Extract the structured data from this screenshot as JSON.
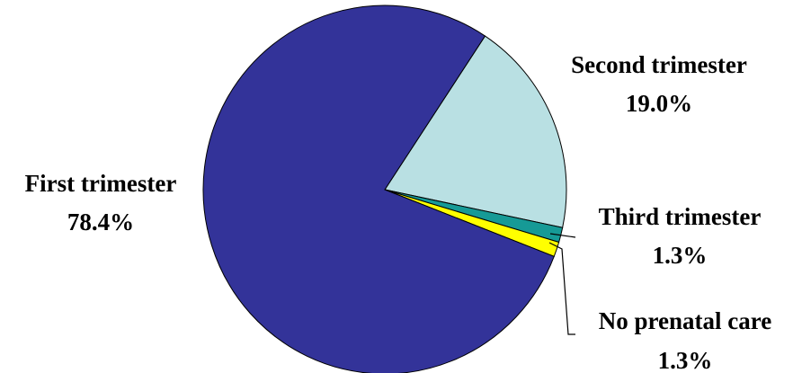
{
  "chart_data": {
    "type": "pie",
    "title": "",
    "slices": [
      {
        "label": "First trimester",
        "value_label": "78.4%",
        "value": 78.4,
        "color": "#333399"
      },
      {
        "label": "Second trimester",
        "value_label": "19.0%",
        "value": 19.0,
        "color": "#b9e0e3"
      },
      {
        "label": "Third trimester",
        "value_label": "1.3%",
        "value": 1.3,
        "color": "#169a96"
      },
      {
        "label": "No prenatal care",
        "value_label": "1.3%",
        "value": 1.3,
        "color": "#ffff00"
      }
    ]
  }
}
